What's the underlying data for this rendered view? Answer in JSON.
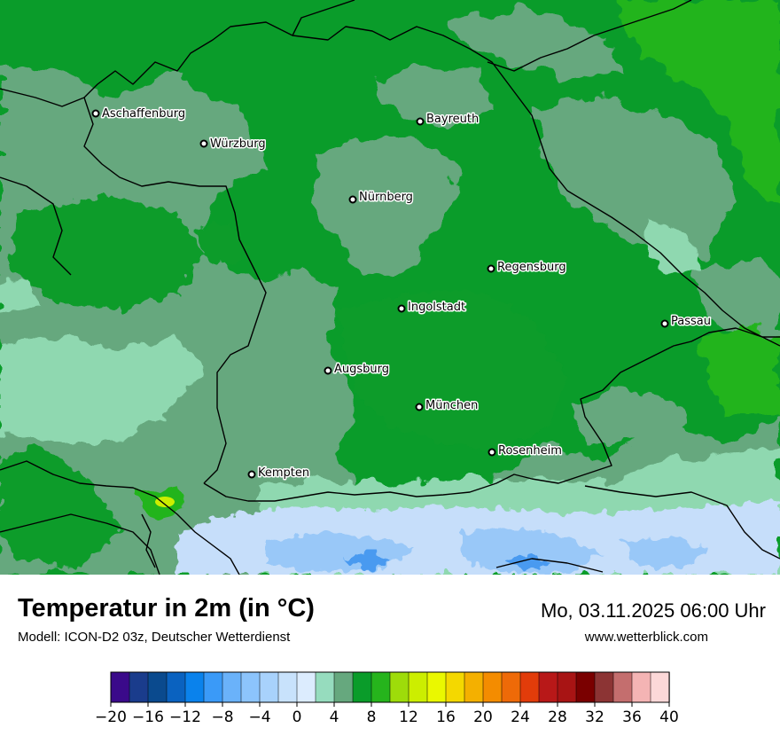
{
  "map": {
    "cities": [
      {
        "name": "Aschaffenburg"
      },
      {
        "name": "Würzburg"
      },
      {
        "name": "Bayreuth"
      },
      {
        "name": "Nürnberg"
      },
      {
        "name": "Regensburg"
      },
      {
        "name": "Ingolstadt"
      },
      {
        "name": "Passau"
      },
      {
        "name": "Augsburg"
      },
      {
        "name": "München"
      },
      {
        "name": "Rosenheim"
      },
      {
        "name": "Kempten"
      }
    ],
    "colors": {
      "dark_green": "#0a9c2a",
      "medium_green": "#66a87e",
      "light_green": "#8fd8b0",
      "bright_green": "#22b41e",
      "pale_blue": "#c6defa",
      "light_blue": "#99c8f8",
      "blue": "#4a9af0",
      "border": "#000000"
    }
  },
  "footer": {
    "title": "Temperatur in 2m (in °C)",
    "model": "Modell: ICON-D2 03z, Deutscher Wetterdienst",
    "datetime": "Mo, 03.11.2025 06:00 Uhr",
    "website": "www.wetterblick.com"
  },
  "legend": {
    "min": -20,
    "max": 40,
    "step": 2,
    "tick_labels": [
      "−20",
      "−16",
      "−12",
      "−8",
      "−4",
      "0",
      "4",
      "8",
      "12",
      "16",
      "20",
      "24",
      "28",
      "32",
      "36",
      "40"
    ],
    "colors": [
      "#3a0a8a",
      "#1a3c8c",
      "#0a4a8e",
      "#0a62c0",
      "#0a82ec",
      "#3a9af8",
      "#6ab2fa",
      "#8cc4fc",
      "#a8d2fc",
      "#c8e2fc",
      "#dcecfe",
      "#96dcbe",
      "#66a87e",
      "#0a9c2a",
      "#26b41c",
      "#9edc0a",
      "#ccee00",
      "#eaf800",
      "#f4d800",
      "#f4b000",
      "#f48c00",
      "#ee6a08",
      "#e23c0a",
      "#b81818",
      "#a81414",
      "#7a0000",
      "#8c3434",
      "#c46e6e",
      "#f4b4b4",
      "#fcd8d8"
    ]
  }
}
